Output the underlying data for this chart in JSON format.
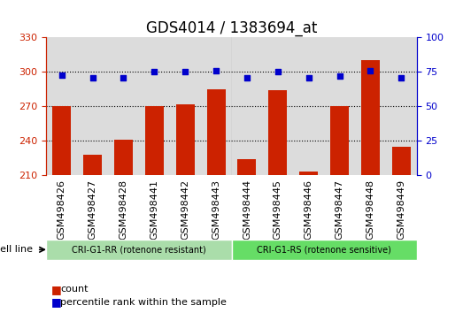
{
  "title": "GDS4014 / 1383694_at",
  "samples": [
    "GSM498426",
    "GSM498427",
    "GSM498428",
    "GSM498441",
    "GSM498442",
    "GSM498443",
    "GSM498444",
    "GSM498445",
    "GSM498446",
    "GSM498447",
    "GSM498448",
    "GSM498449"
  ],
  "counts": [
    270,
    228,
    241,
    270,
    272,
    285,
    224,
    284,
    213,
    270,
    310,
    235
  ],
  "percentile_ranks": [
    73,
    71,
    71,
    75,
    75,
    76,
    71,
    75,
    71,
    72,
    76,
    71
  ],
  "bar_color": "#cc2200",
  "dot_color": "#0000cc",
  "ylim_left": [
    210,
    330
  ],
  "ylim_right": [
    0,
    100
  ],
  "yticks_left": [
    210,
    240,
    270,
    300,
    330
  ],
  "yticks_right": [
    0,
    25,
    50,
    75,
    100
  ],
  "groups": [
    {
      "label": "CRI-G1-RR (rotenone resistant)",
      "start": 0,
      "end": 6,
      "color": "#aaddaa"
    },
    {
      "label": "CRI-G1-RS (rotenone sensitive)",
      "start": 6,
      "end": 12,
      "color": "#66dd66"
    }
  ],
  "cell_line_label": "cell line",
  "legend_count_label": "count",
  "legend_pct_label": "percentile rank within the sample",
  "bg_color": "#ffffff",
  "plot_bg_color": "#e8e8e8",
  "title_fontsize": 12,
  "tick_fontsize": 8,
  "label_fontsize": 8,
  "gridline_yticks": [
    240,
    270,
    300
  ]
}
